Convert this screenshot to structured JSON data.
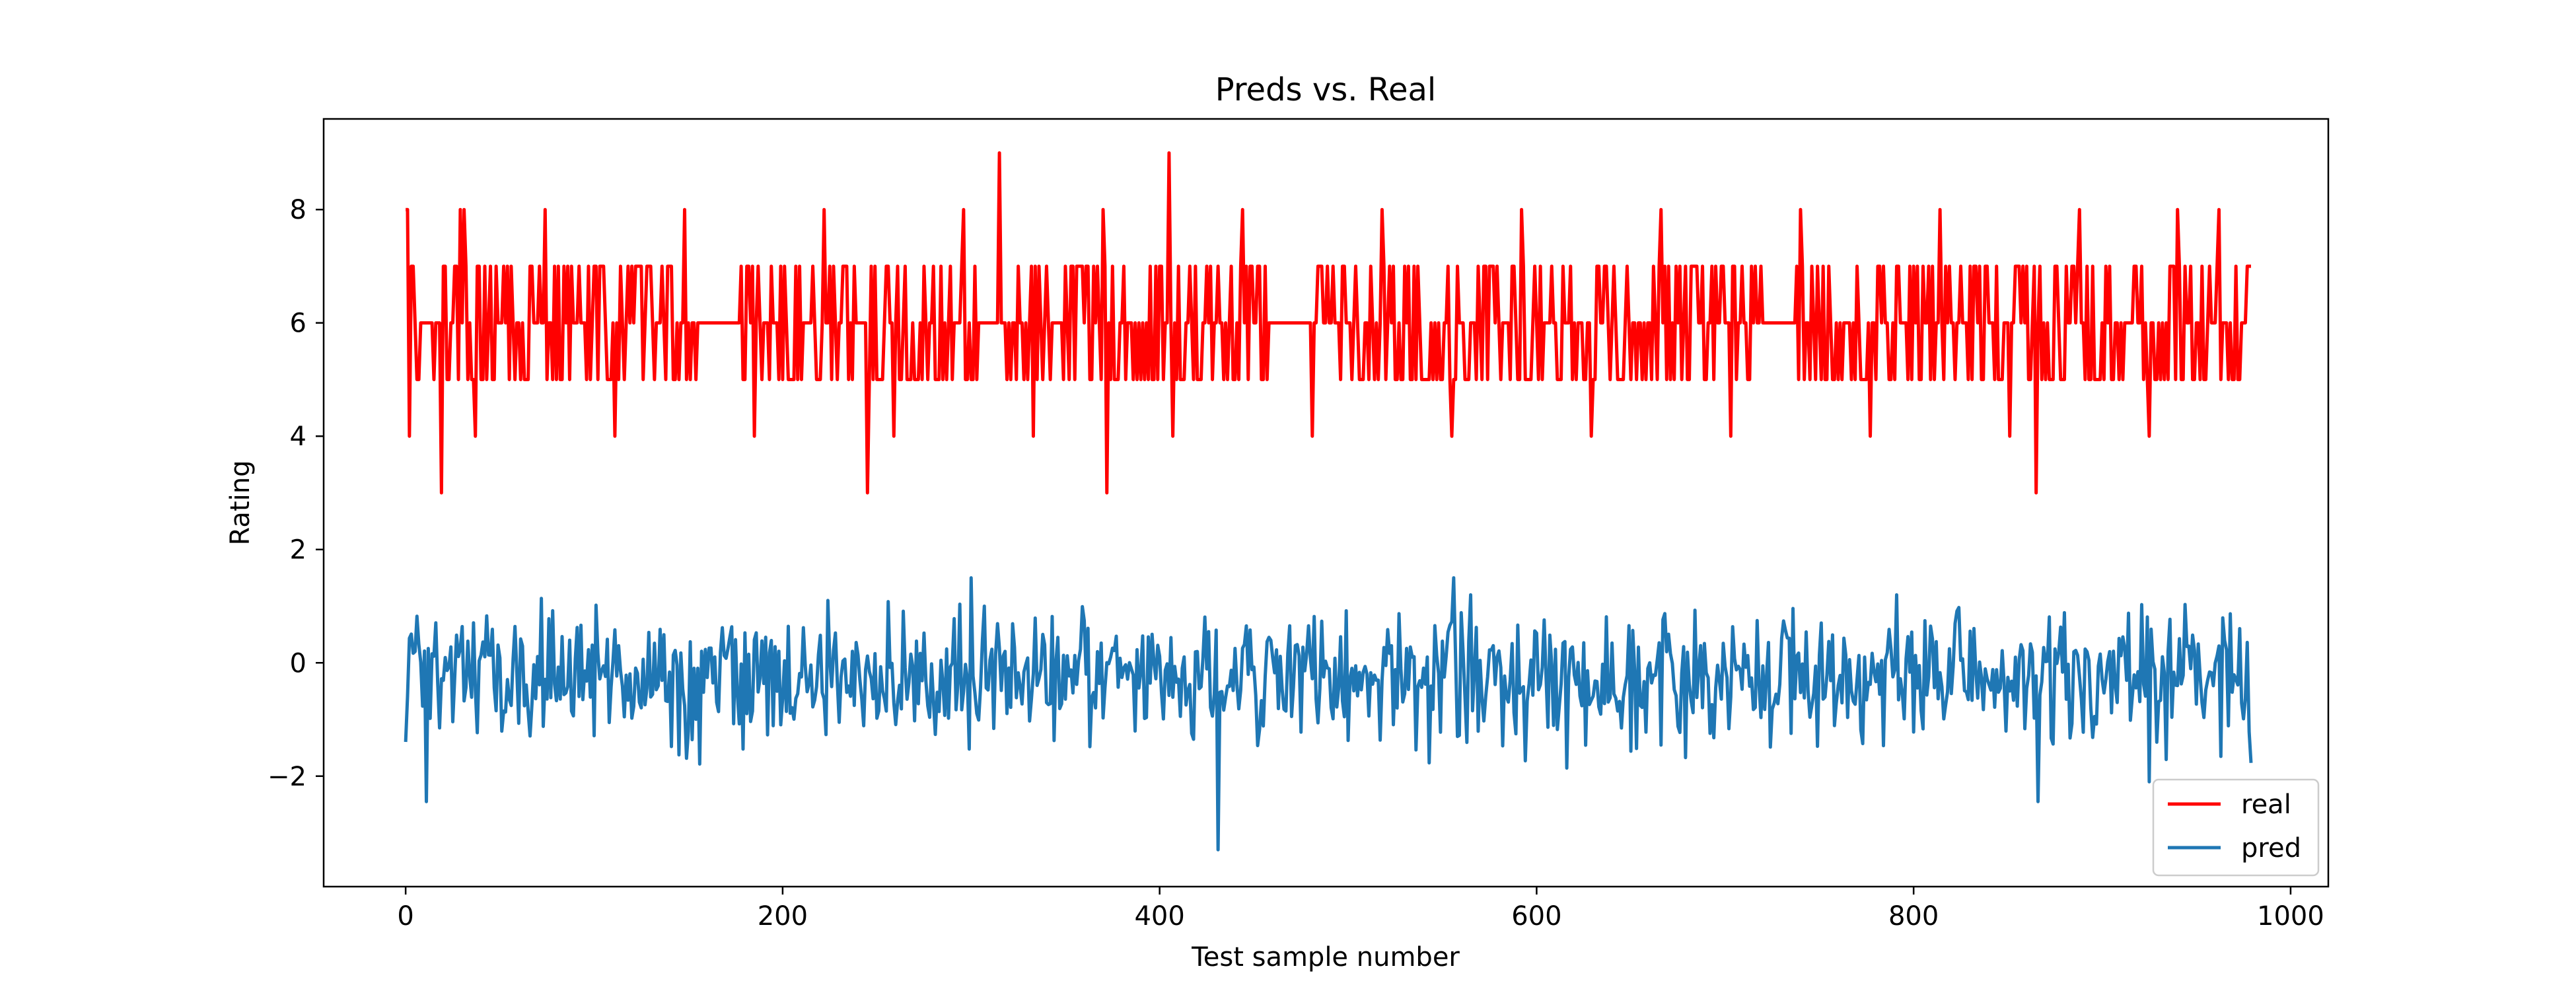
{
  "chart_data": {
    "type": "line",
    "title": "Preds vs. Real",
    "xlabel": "Test sample number",
    "ylabel": "Rating",
    "xlim": [
      -43.5,
      1020
    ],
    "ylim": [
      -3.95,
      9.6
    ],
    "xticks": [
      0,
      200,
      400,
      600,
      800,
      1000
    ],
    "yticks": [
      -2,
      0,
      2,
      4,
      6,
      8
    ],
    "xtick_labels": [
      "0",
      "200",
      "400",
      "600",
      "800",
      "1000"
    ],
    "ytick_labels": [
      "−2",
      "0",
      "2",
      "4",
      "6",
      "8"
    ],
    "grid": false,
    "legend_placement": "lower-right",
    "n_points": 980,
    "series": [
      {
        "name": "real",
        "color": "#ff0000",
        "description_stats": {
          "min": 3,
          "max": 9,
          "typical_values": [
            5,
            6,
            7
          ]
        },
        "notable_points": [
          {
            "x": 1,
            "y": 8
          },
          {
            "x": 2,
            "y": 4
          },
          {
            "x": 19,
            "y": 3
          },
          {
            "x": 29,
            "y": 8
          },
          {
            "x": 31,
            "y": 8
          },
          {
            "x": 245,
            "y": 3
          },
          {
            "x": 315,
            "y": 9
          },
          {
            "x": 372,
            "y": 3
          },
          {
            "x": 405,
            "y": 9
          },
          {
            "x": 865,
            "y": 3
          },
          {
            "x": 940,
            "y": 8
          }
        ]
      },
      {
        "name": "pred",
        "color": "#1f77b4",
        "description_stats": {
          "min": -3.3,
          "max": 1.5,
          "typical_range": [
            -1.2,
            0.8
          ]
        },
        "notable_points": [
          {
            "x": 11,
            "y": -2.45
          },
          {
            "x": 300,
            "y": 1.5
          },
          {
            "x": 431,
            "y": -3.3
          },
          {
            "x": 556,
            "y": 1.5
          },
          {
            "x": 866,
            "y": -2.45
          },
          {
            "x": 925,
            "y": -2.1
          }
        ]
      }
    ]
  }
}
